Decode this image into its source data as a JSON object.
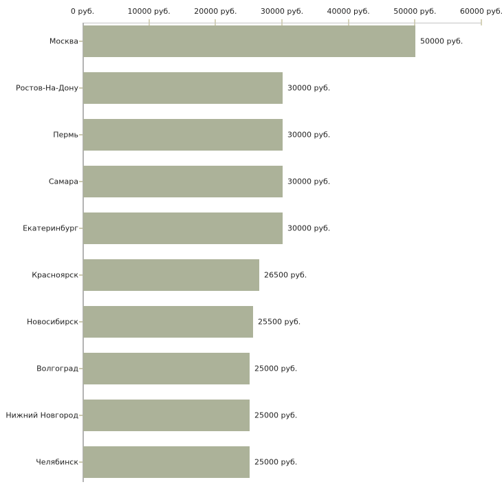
{
  "chart_data": {
    "type": "bar",
    "orientation": "horizontal",
    "title": "",
    "xlabel": "",
    "ylabel": "",
    "grid": false,
    "legend": null,
    "xlim": [
      0,
      60000
    ],
    "x_ticks": [
      "0 руб.",
      "10000 руб.",
      "20000 руб.",
      "30000 руб.",
      "40000 руб.",
      "50000 руб.",
      "60000 руб."
    ],
    "categories": [
      "Москва",
      "Ростов-На-Дону",
      "Пермь",
      "Самара",
      "Екатеринбург",
      "Красноярск",
      "Новосибирск",
      "Волгоград",
      "Нижний Новгород",
      "Челябинск"
    ],
    "values": [
      50000,
      30000,
      30000,
      30000,
      30000,
      26500,
      25500,
      25000,
      25000,
      25000
    ],
    "value_labels": [
      "50000 руб.",
      "30000 руб.",
      "30000 руб.",
      "30000 руб.",
      "30000 руб.",
      "26500 руб.",
      "25500 руб.",
      "25000 руб.",
      "25000 руб.",
      "25000 руб."
    ],
    "colors": {
      "bar": "#acb299",
      "axis_line_h": "#c3c3c3",
      "axis_line_v": "#b3b3b3",
      "tick_mark": "#d6d3b8",
      "category_tick": "#ccc9ae",
      "text": "#222222",
      "background": "#ffffff"
    }
  }
}
